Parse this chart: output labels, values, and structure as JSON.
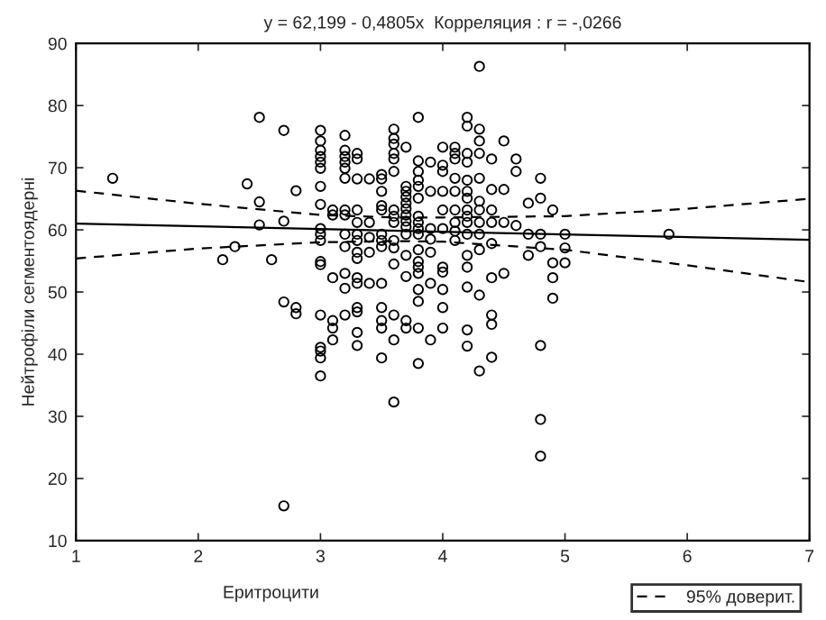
{
  "chart_data": {
    "type": "scatter",
    "title": "y = 62,199 - 0,4805x  Корреляция : r = -,0266",
    "xlabel": "Еритроцити",
    "ylabel": "Нейтрофіли сегментоядерні",
    "xlim": [
      1,
      7
    ],
    "xticks": [
      1,
      2,
      3,
      4,
      5,
      6,
      7
    ],
    "ylim": [
      10,
      90
    ],
    "yticks": [
      10,
      20,
      30,
      40,
      50,
      60,
      70,
      80,
      90
    ],
    "grid": false,
    "legend": "bottom right",
    "marker": "circle",
    "series": [
      {
        "color": "#000000",
        "x": [
          1.3,
          2.2,
          2.3,
          2.4,
          2.5,
          2.5,
          2.5,
          2.6,
          2.7,
          2.7,
          2.7,
          2.7,
          2.8,
          2.8,
          2.8,
          3.0,
          3.0,
          3.0,
          3.0,
          3.0,
          3.0,
          3.0,
          3.0,
          3.0,
          3.0,
          3.0,
          3.0,
          3.0,
          3.0,
          3.0,
          3.0,
          3.0,
          3.0,
          3.1,
          3.1,
          3.1,
          3.1,
          3.1,
          3.1,
          3.2,
          3.2,
          3.2,
          3.2,
          3.2,
          3.2,
          3.2,
          3.2,
          3.2,
          3.2,
          3.2,
          3.2,
          3.2,
          3.3,
          3.3,
          3.3,
          3.3,
          3.3,
          3.3,
          3.3,
          3.3,
          3.3,
          3.3,
          3.3,
          3.3,
          3.3,
          3.3,
          3.3,
          3.4,
          3.4,
          3.4,
          3.4,
          3.4,
          3.5,
          3.5,
          3.5,
          3.5,
          3.5,
          3.5,
          3.5,
          3.5,
          3.5,
          3.5,
          3.5,
          3.5,
          3.5,
          3.6,
          3.6,
          3.6,
          3.6,
          3.6,
          3.6,
          3.6,
          3.6,
          3.6,
          3.6,
          3.6,
          3.6,
          3.6,
          3.6,
          3.6,
          3.7,
          3.7,
          3.7,
          3.7,
          3.7,
          3.7,
          3.7,
          3.7,
          3.7,
          3.7,
          3.7,
          3.7,
          3.7,
          3.7,
          3.8,
          3.8,
          3.8,
          3.8,
          3.8,
          3.8,
          3.8,
          3.8,
          3.8,
          3.8,
          3.8,
          3.8,
          3.8,
          3.8,
          3.8,
          3.8,
          3.8,
          3.8,
          3.9,
          3.9,
          3.9,
          3.9,
          3.9,
          3.9,
          3.9,
          4.0,
          4.0,
          4.0,
          4.0,
          4.0,
          4.0,
          4.0,
          4.0,
          4.0,
          4.0,
          4.0,
          4.1,
          4.1,
          4.1,
          4.1,
          4.1,
          4.1,
          4.1,
          4.1,
          4.1,
          4.2,
          4.2,
          4.2,
          4.2,
          4.2,
          4.2,
          4.2,
          4.2,
          4.2,
          4.2,
          4.2,
          4.2,
          4.2,
          4.2,
          4.2,
          4.2,
          4.3,
          4.3,
          4.3,
          4.3,
          4.3,
          4.3,
          4.3,
          4.3,
          4.3,
          4.3,
          4.3,
          4.3,
          4.4,
          4.4,
          4.4,
          4.4,
          4.4,
          4.4,
          4.4,
          4.4,
          4.4,
          4.5,
          4.5,
          4.5,
          4.5,
          4.6,
          4.6,
          4.6,
          4.7,
          4.7,
          4.7,
          4.8,
          4.8,
          4.8,
          4.8,
          4.8,
          4.8,
          4.8,
          4.9,
          4.9,
          4.9,
          4.9,
          5.0,
          5.0,
          5.0,
          5.85
        ],
        "values": [
          68.3,
          55.2,
          57.3,
          67.4,
          78.1,
          64.5,
          60.8,
          55.2,
          76.0,
          61.4,
          48.4,
          15.6,
          66.3,
          47.5,
          46.5,
          76.0,
          74.3,
          72.8,
          71.8,
          70.9,
          69.9,
          67.0,
          64.1,
          60.2,
          59.3,
          58.3,
          54.9,
          54.4,
          46.3,
          41.1,
          40.5,
          39.4,
          36.5,
          63.2,
          62.4,
          52.3,
          45.4,
          44.2,
          42.3,
          75.2,
          72.8,
          71.8,
          70.9,
          69.9,
          68.3,
          63.2,
          62.4,
          59.3,
          57.3,
          53.0,
          50.6,
          46.3,
          72.3,
          71.4,
          68.2,
          63.2,
          61.2,
          59.3,
          58.3,
          56.4,
          55.4,
          52.3,
          51.4,
          47.5,
          46.8,
          43.5,
          41.4,
          68.2,
          61.2,
          58.8,
          56.4,
          51.4,
          68.9,
          68.2,
          66.2,
          63.9,
          63.2,
          59.3,
          58.3,
          57.3,
          51.4,
          47.5,
          45.4,
          44.2,
          39.4,
          76.2,
          74.7,
          73.8,
          72.3,
          71.4,
          69.4,
          63.2,
          62.2,
          61.2,
          58.3,
          57.1,
          54.5,
          46.3,
          42.3,
          32.3,
          73.3,
          67.0,
          66.2,
          65.3,
          64.3,
          63.4,
          62.4,
          61.4,
          60.5,
          59.3,
          55.9,
          52.5,
          45.4,
          44.2,
          78.1,
          71.1,
          69.4,
          68.0,
          67.0,
          65.1,
          62.2,
          61.2,
          60.2,
          59.3,
          56.8,
          54.9,
          54.0,
          53.0,
          50.4,
          48.5,
          44.2,
          38.5,
          70.9,
          66.2,
          60.2,
          58.5,
          56.4,
          51.4,
          42.3,
          73.3,
          70.4,
          69.4,
          66.2,
          63.2,
          60.2,
          54.0,
          53.2,
          50.4,
          47.5,
          44.2,
          73.3,
          72.3,
          71.4,
          68.3,
          66.2,
          63.2,
          61.2,
          59.8,
          58.3,
          78.1,
          76.7,
          72.3,
          70.9,
          68.0,
          66.2,
          65.1,
          63.2,
          62.2,
          61.2,
          59.3,
          55.9,
          54.0,
          50.8,
          43.9,
          41.3,
          86.3,
          76.2,
          74.3,
          72.3,
          68.3,
          64.6,
          63.2,
          61.2,
          59.3,
          56.8,
          49.5,
          37.3,
          71.4,
          66.5,
          63.2,
          61.2,
          57.8,
          52.3,
          46.3,
          44.8,
          39.5,
          74.3,
          66.5,
          61.2,
          53.0,
          71.4,
          69.4,
          60.7,
          64.3,
          59.3,
          55.9,
          68.3,
          65.1,
          59.3,
          57.3,
          41.4,
          29.5,
          23.6,
          63.2,
          54.7,
          52.3,
          49.0,
          59.3,
          57.1,
          54.7,
          59.3
        ]
      },
      {
        "type": "line",
        "color": "#000000",
        "line_style": "solid",
        "marker": "none",
        "x": [
          1,
          7
        ],
        "values": [
          61.0,
          58.4
        ]
      },
      {
        "type": "line",
        "name": "95% доверит.",
        "color": "#000000",
        "line_style": "dashed",
        "marker": "none",
        "x": [
          1,
          2,
          3,
          3.6,
          4,
          5,
          6,
          7
        ],
        "values": [
          66.3,
          64.2,
          62.4,
          62.0,
          62.0,
          62.2,
          63.4,
          65.0
        ]
      },
      {
        "type": "line",
        "color": "#000000",
        "line_style": "dashed",
        "marker": "none",
        "x": [
          1,
          2,
          3,
          3.6,
          4,
          5,
          6,
          7
        ],
        "values": [
          55.4,
          57.0,
          58.0,
          58.2,
          58.1,
          56.8,
          54.3,
          51.6
        ]
      }
    ]
  }
}
